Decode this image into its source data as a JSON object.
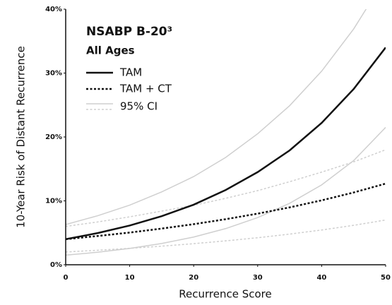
{
  "chart_data": {
    "type": "line",
    "title": "NSABP B-20³",
    "subtitle": "All Ages",
    "x_label": "Recurrence Score",
    "y_label": "10-Year Risk of Distant Recurrence",
    "x": [
      0,
      5,
      10,
      15,
      20,
      25,
      30,
      35,
      40,
      45,
      50
    ],
    "series": [
      {
        "name": "TAM",
        "color": "#111111",
        "dash": "solid",
        "values": [
          4,
          4.96,
          6.14,
          7.6,
          9.4,
          11.7,
          14.5,
          17.9,
          22.2,
          27.5,
          34
        ],
        "ci_lower": [
          1.5,
          1.96,
          2.55,
          3.33,
          4.34,
          5.66,
          7.38,
          9.62,
          12.5,
          16.3,
          21.5
        ],
        "ci_upper": [
          6.3,
          7.67,
          9.33,
          11.4,
          13.8,
          16.8,
          20.5,
          24.9,
          30.3,
          36.9,
          44.9
        ]
      },
      {
        "name": "TAM + CT",
        "color": "#111111",
        "dash": "dotted",
        "values": [
          4,
          4.5,
          5.04,
          5.66,
          6.35,
          7.13,
          8,
          8.98,
          10.08,
          11.31,
          12.7
        ],
        "ci_lower": [
          2,
          2.27,
          2.57,
          2.91,
          3.3,
          3.74,
          4.23,
          4.8,
          5.44,
          6.17,
          7
        ],
        "ci_upper": [
          6,
          6.7,
          7.5,
          8.4,
          9.3,
          10.4,
          11.6,
          13,
          14.5,
          16.1,
          18
        ]
      }
    ],
    "ci_label": "95% CI",
    "ci_color": "#cfcfcf",
    "xlim": [
      0,
      50
    ],
    "xticks": [
      0,
      10,
      20,
      30,
      40,
      50
    ],
    "ylim": [
      0,
      40
    ],
    "yticks": [
      {
        "value": 0,
        "label": "0%"
      },
      {
        "value": 10,
        "label": "10%"
      },
      {
        "value": 20,
        "label": "20%"
      },
      {
        "value": 30,
        "label": "30%"
      },
      {
        "value": 40,
        "label": "40%"
      }
    ]
  }
}
